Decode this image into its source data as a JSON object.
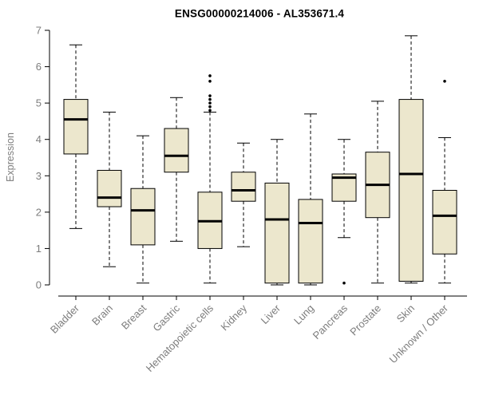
{
  "chart_data": {
    "type": "boxplot",
    "title": "ENSG00000214006 - AL353671.4",
    "ylabel": "Expression",
    "xlabel": "",
    "ylim": [
      0,
      7
    ],
    "yticks": [
      0,
      1,
      2,
      3,
      4,
      5,
      6,
      7
    ],
    "grid": false,
    "legend": "none",
    "categories": [
      "Bladder",
      "Brain",
      "Breast",
      "Gastric",
      "Hematopoietic cells",
      "Kidney",
      "Liver",
      "Lung",
      "Pancreas",
      "Prostate",
      "Skin",
      "Unknown / Other"
    ],
    "boxes": [
      {
        "category": "Bladder",
        "low": 1.55,
        "q1": 3.6,
        "median": 4.55,
        "q3": 5.1,
        "high": 6.6,
        "outliers": []
      },
      {
        "category": "Brain",
        "low": 0.5,
        "q1": 2.15,
        "median": 2.4,
        "q3": 3.15,
        "high": 4.75,
        "outliers": []
      },
      {
        "category": "Breast",
        "low": 0.05,
        "q1": 1.1,
        "median": 2.05,
        "q3": 2.65,
        "high": 4.1,
        "outliers": []
      },
      {
        "category": "Gastric",
        "low": 1.2,
        "q1": 3.1,
        "median": 3.55,
        "q3": 4.3,
        "high": 5.15,
        "outliers": []
      },
      {
        "category": "Hematopoietic cells",
        "low": 0.05,
        "q1": 1.0,
        "median": 1.75,
        "q3": 2.55,
        "high": 4.75,
        "outliers": [
          4.8,
          4.9,
          5.0,
          5.1,
          5.2,
          5.6,
          5.75
        ]
      },
      {
        "category": "Kidney",
        "low": 1.05,
        "q1": 2.3,
        "median": 2.6,
        "q3": 3.1,
        "high": 3.9,
        "outliers": []
      },
      {
        "category": "Liver",
        "low": 0.0,
        "q1": 0.05,
        "median": 1.8,
        "q3": 2.8,
        "high": 4.0,
        "outliers": []
      },
      {
        "category": "Lung",
        "low": 0.0,
        "q1": 0.05,
        "median": 1.7,
        "q3": 2.35,
        "high": 4.7,
        "outliers": []
      },
      {
        "category": "Pancreas",
        "low": 1.3,
        "q1": 2.3,
        "median": 2.95,
        "q3": 3.05,
        "high": 4.0,
        "outliers": [
          0.05
        ]
      },
      {
        "category": "Prostate",
        "low": 0.05,
        "q1": 1.85,
        "median": 2.75,
        "q3": 3.65,
        "high": 5.05,
        "outliers": []
      },
      {
        "category": "Skin",
        "low": 0.05,
        "q1": 0.1,
        "median": 3.05,
        "q3": 5.1,
        "high": 6.85,
        "outliers": []
      },
      {
        "category": "Unknown / Other",
        "low": 0.05,
        "q1": 0.85,
        "median": 1.9,
        "q3": 2.6,
        "high": 4.05,
        "outliers": [
          5.6
        ]
      }
    ],
    "colors": {
      "box_fill": "#ece7cd",
      "box_stroke": "#000000",
      "median": "#000000",
      "whisker": "#000000",
      "axis": "#000000",
      "label": "#7d7d7d",
      "title": "#000000",
      "background": "#ffffff"
    }
  }
}
